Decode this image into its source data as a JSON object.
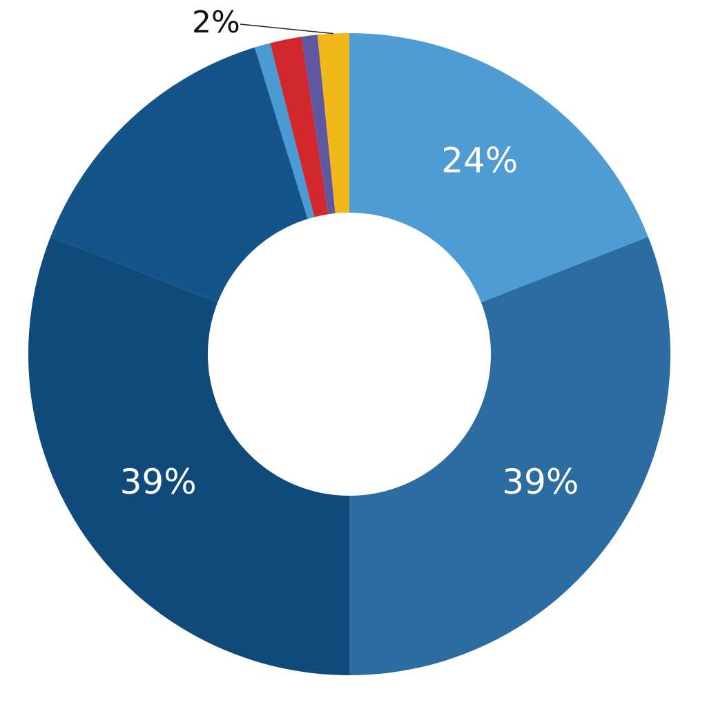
{
  "chart_data": {
    "type": "donut",
    "values": [
      24,
      39,
      39,
      18,
      1,
      2,
      1,
      2
    ],
    "value_labels": [
      "24%",
      "39%",
      "39%",
      null,
      null,
      null,
      null,
      "2%"
    ],
    "colors": [
      "#4f9bd3",
      "#2c6ca0",
      "#0f4a7a",
      "#145488",
      "#4a9ad4",
      "#d1282d",
      "#5f58a1",
      "#f1b71b"
    ]
  }
}
